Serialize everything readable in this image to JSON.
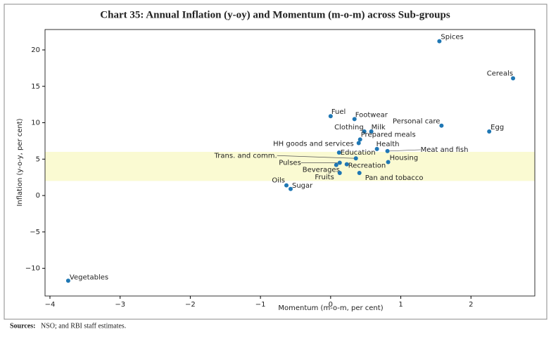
{
  "chart_data": {
    "type": "scatter",
    "title": "Chart 35: Annual Inflation (y-oy) and Momentum (m-o-m) across Sub-groups",
    "x_label": "Momentum (m-o-m, per cent)",
    "y_label": "Inflation (y-o-y, per cent)",
    "source_label": "Sources:",
    "source_text": "NSO; and RBI staff estimates.",
    "highlight_band": {
      "ylim": [
        2,
        6
      ],
      "color": "#fafad2"
    },
    "series": [
      {
        "name": "Sub-groups",
        "color": "#1f77b4",
        "labels": [
          "Spices",
          "Cereals",
          "Fuel",
          "Footwear",
          "Personal care",
          "Egg",
          "Clothing",
          "Milk",
          "Prepared meals",
          "HH goods and services",
          "Health",
          "Meat and fish",
          "Education",
          "Trans. and comm.",
          "Housing",
          "Pulses",
          "Recreation",
          "Beverages",
          "Fruits",
          "Pan and tobacco",
          "Oils",
          "Sugar",
          "Vegetables"
        ],
        "x": [
          1.55,
          2.6,
          0.0,
          0.34,
          1.58,
          2.26,
          0.48,
          0.58,
          0.42,
          0.4,
          0.66,
          0.81,
          0.12,
          0.36,
          0.82,
          0.13,
          0.23,
          0.08,
          0.13,
          0.41,
          -0.63,
          -0.57,
          -3.74
        ],
        "values": [
          21.2,
          16.1,
          10.9,
          10.5,
          9.6,
          8.8,
          8.8,
          8.8,
          7.7,
          7.2,
          6.4,
          6.1,
          5.9,
          5.1,
          4.6,
          4.5,
          4.3,
          4.2,
          3.1,
          3.1,
          1.4,
          0.9,
          -11.7
        ]
      }
    ],
    "xlim": [
      -4.07,
      2.91
    ],
    "ylim": [
      -13.8,
      22.8
    ],
    "xticks": [
      {
        "value": -4,
        "label": "−4"
      },
      {
        "value": -3,
        "label": "−3"
      },
      {
        "value": -2,
        "label": "−2"
      },
      {
        "value": -1,
        "label": "−1"
      },
      0,
      1,
      2
    ],
    "yticks": [
      {
        "value": -10,
        "label": "−10"
      },
      {
        "value": -5,
        "label": "−5"
      },
      0,
      5,
      10,
      15,
      20
    ],
    "grid": false
  }
}
